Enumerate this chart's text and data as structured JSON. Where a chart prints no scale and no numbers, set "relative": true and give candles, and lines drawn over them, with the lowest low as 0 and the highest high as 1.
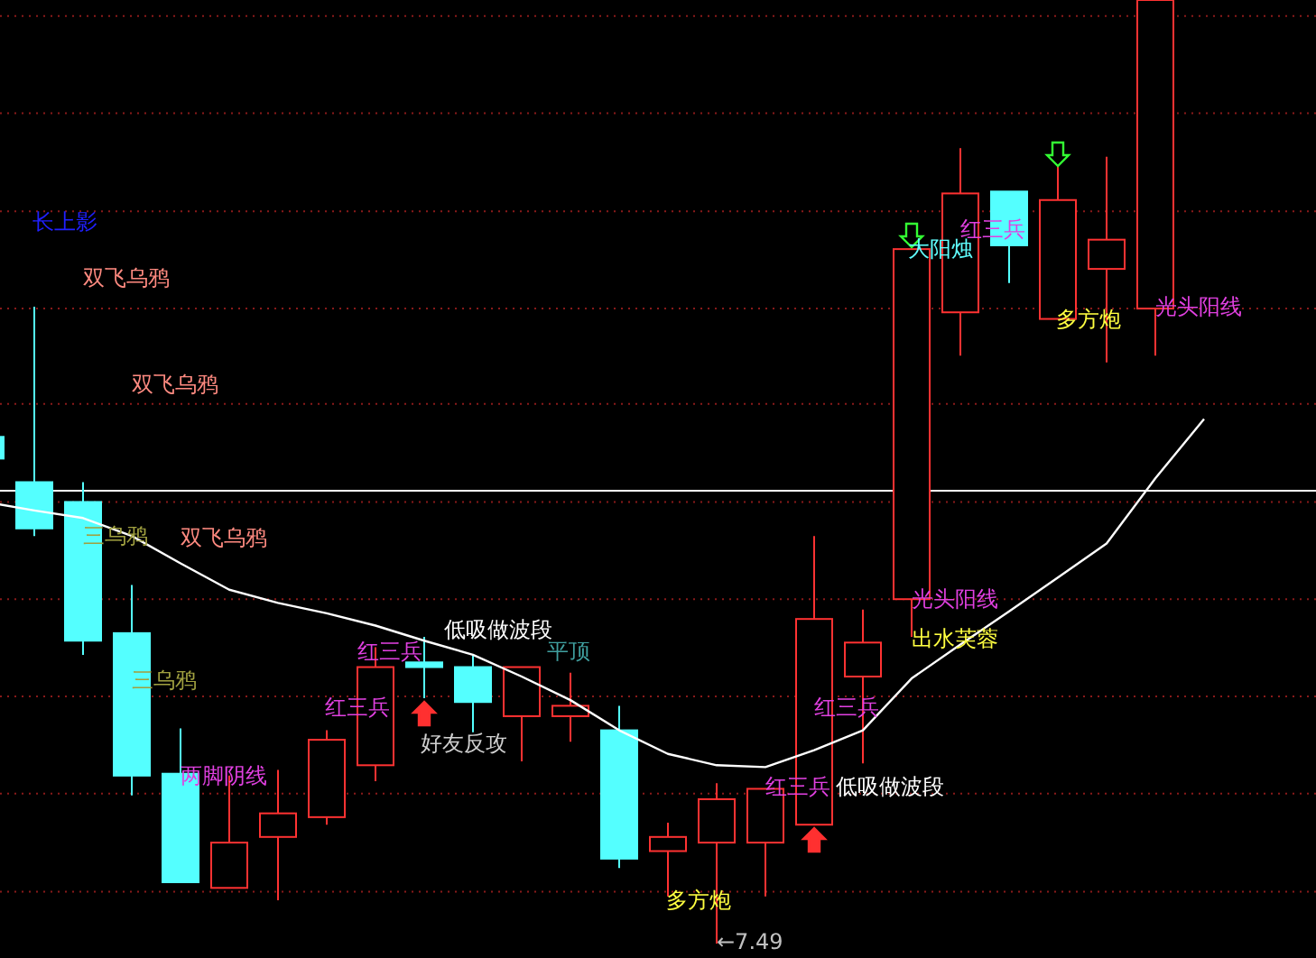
{
  "chart_data": {
    "type": "candlestick",
    "relative": true,
    "categories": [
      null,
      null,
      null,
      null,
      null,
      null,
      null,
      null,
      null,
      null,
      null,
      null,
      null,
      null,
      null,
      null,
      null,
      null,
      null,
      null,
      null,
      null,
      null,
      null,
      null,
      null
    ],
    "ohlc": [
      [
        0.537,
        0.537,
        0.514,
        0.514
      ],
      [
        0.489,
        0.675,
        0.432,
        0.44
      ],
      [
        0.468,
        0.489,
        0.306,
        0.321
      ],
      [
        0.329,
        0.38,
        0.157,
        0.178
      ],
      [
        0.18,
        0.228,
        0.065,
        0.065
      ],
      [
        0.059,
        0.178,
        0.059,
        0.107
      ],
      [
        0.113,
        0.184,
        0.046,
        0.138
      ],
      [
        0.134,
        0.226,
        0.126,
        0.216
      ],
      [
        0.189,
        0.314,
        0.172,
        0.293
      ],
      [
        0.298,
        0.325,
        0.26,
        0.293
      ],
      [
        0.293,
        0.306,
        0.224,
        0.256
      ],
      [
        0.241,
        0.293,
        0.193,
        0.293
      ],
      [
        0.241,
        0.287,
        0.214,
        0.252
      ],
      [
        0.226,
        0.252,
        0.08,
        0.09
      ],
      [
        0.098,
        0.128,
        0.05,
        0.113
      ],
      [
        0.107,
        0.17,
        0,
        0.153
      ],
      [
        0.107,
        0.164,
        0.05,
        0.164
      ],
      [
        0.126,
        0.432,
        0.126,
        0.344
      ],
      [
        0.283,
        0.354,
        0.191,
        0.319
      ],
      [
        0.365,
        0.736,
        0.325,
        0.736
      ],
      [
        0.669,
        0.843,
        0.623,
        0.795
      ],
      [
        0.797,
        0.797,
        0.7,
        0.74
      ],
      [
        0.662,
        0.824,
        0.662,
        0.788
      ],
      [
        0.715,
        0.834,
        0.616,
        0.746
      ],
      [
        0.673,
        1,
        0.623,
        1
      ],
      null
    ],
    "colors": [
      "#54ffff",
      "#54ffff",
      "#54ffff",
      "#54ffff",
      "#54ffff",
      "#ff3232",
      "#ff3232",
      "#ff3232",
      "#ff3232",
      "#54ffff",
      "#54ffff",
      "#ff3232",
      "#ff3232",
      "#54ffff",
      "#ff3232",
      "#ff3232",
      "#ff3232",
      "#ff3232",
      "#ff3232",
      "#ff3232",
      "#ff3232",
      "#54ffff",
      "#ff3232",
      "#ff3232",
      "#ff3232",
      null
    ],
    "series": [
      {
        "type": "line",
        "color": "#ffffff",
        "values": [
          0.468,
          0.459,
          0.451,
          0.432,
          0.403,
          0.375,
          0.361,
          0.35,
          0.337,
          0.321,
          0.306,
          0.283,
          0.258,
          0.226,
          0.201,
          0.189,
          0.187,
          0.205,
          0.226,
          0.281,
          0.317,
          0.352,
          0.388,
          0.424,
          0.493,
          0.556
        ]
      }
    ],
    "ref_lines": [
      {
        "axis": "y",
        "value": 0.48,
        "color": "#ffffff"
      },
      {
        "axis": "y",
        "value": 0.983,
        "color": "#8a1a1a",
        "line_style": "dotted"
      },
      {
        "axis": "y",
        "value": 0.88,
        "color": "#8a1a1a",
        "line_style": "dotted"
      },
      {
        "axis": "y",
        "value": 0.776,
        "color": "#8a1a1a",
        "line_style": "dotted"
      },
      {
        "axis": "y",
        "value": 0.673,
        "color": "#8a1a1a",
        "line_style": "dotted"
      },
      {
        "axis": "y",
        "value": 0.572,
        "color": "#8a1a1a",
        "line_style": "dotted"
      },
      {
        "axis": "y",
        "value": 0.468,
        "color": "#8a1a1a",
        "line_style": "dotted"
      },
      {
        "axis": "y",
        "value": 0.365,
        "color": "#8a1a1a",
        "line_style": "dotted"
      },
      {
        "axis": "y",
        "value": 0.262,
        "color": "#8a1a1a",
        "line_style": "dotted"
      },
      {
        "axis": "y",
        "value": 0.159,
        "color": "#8a1a1a",
        "line_style": "dotted"
      },
      {
        "axis": "y",
        "value": 0.055,
        "color": "#8a1a1a",
        "line_style": "dotted"
      }
    ],
    "annotations": [
      "长上影",
      "双飞乌鸦",
      "双飞乌鸦",
      "三乌鸦",
      "双飞乌鸦",
      "三乌鸦",
      "两脚阴线",
      "红三兵",
      "红三兵",
      "低吸做波段",
      "好友反攻",
      "平顶",
      "红三兵",
      "红三兵",
      "低吸做波段",
      "多方炮",
      "←7.49",
      "大阳烛",
      "红三兵",
      "多方炮",
      "光头阳线",
      "光头阳线",
      "出水芙蓉"
    ]
  }
}
